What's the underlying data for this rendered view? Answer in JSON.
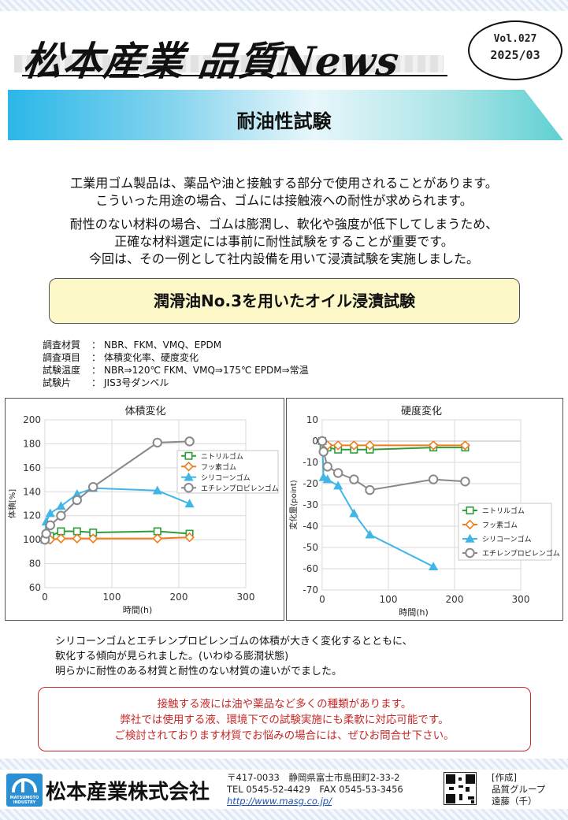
{
  "header": {
    "title": "松本産業 品質News",
    "vol": "Vol.027",
    "date": "2025/03"
  },
  "banner": {
    "title": "耐油性試験"
  },
  "intro": {
    "p1": [
      "工業用ゴム製品は、薬品や油と接触する部分で使用されることがあります。",
      "こういった用途の場合、ゴムには接触液への耐性が求められます。"
    ],
    "p2": [
      "耐性のない材料の場合、ゴムは膨潤し、軟化や強度が低下してしまうため、",
      "正確な材料選定には事前に耐性試験をすることが重要です。",
      "今回は、その一例として社内設備を用いて浸漬試験を実施しました。"
    ]
  },
  "test_title": "潤滑油No.3を用いたオイル浸漬試験",
  "conditions": [
    {
      "label": "調査材質",
      "sep": "：",
      "value": "NBR、FKM、VMQ、EPDM"
    },
    {
      "label": "調査項目",
      "sep": "：",
      "value": "体積変化率、硬度変化"
    },
    {
      "label": "試験温度",
      "sep": "：",
      "value": "NBR⇒120℃ FKM、VMQ⇒175℃ EPDM⇒常温"
    },
    {
      "label": "試験片",
      "sep": "：",
      "value": "JIS3号ダンベル"
    }
  ],
  "chart_data": [
    {
      "type": "line",
      "title": "体積変化",
      "xlabel": "時間(h)",
      "ylabel": "体積[%]",
      "xlim": [
        0,
        300
      ],
      "ylim": [
        60,
        200
      ],
      "xticks": [
        0,
        100,
        200,
        300
      ],
      "yticks": [
        60,
        80,
        100,
        120,
        140,
        160,
        180,
        200
      ],
      "grid": true,
      "legend_position": "right",
      "series": [
        {
          "name": "ニトリルゴム",
          "color": "#2e9e3c",
          "marker": "square",
          "x": [
            0,
            2,
            8,
            24,
            48,
            72,
            168,
            216
          ],
          "y": [
            100,
            101,
            103,
            107,
            107,
            106,
            107,
            105
          ]
        },
        {
          "name": "フッ素ゴム",
          "color": "#ef7d1c",
          "marker": "diamond",
          "x": [
            0,
            2,
            8,
            24,
            48,
            72,
            168,
            216
          ],
          "y": [
            100,
            100,
            100,
            101,
            101,
            101,
            101,
            102
          ]
        },
        {
          "name": "シリコーンゴム",
          "color": "#41b6e6",
          "marker": "triangle",
          "x": [
            0,
            2,
            8,
            24,
            48,
            72,
            168,
            216
          ],
          "y": [
            100,
            115,
            122,
            128,
            138,
            143,
            141,
            130
          ]
        },
        {
          "name": "エチレンプロピレンゴム",
          "color": "#888888",
          "marker": "circle",
          "x": [
            0,
            2,
            8,
            24,
            48,
            72,
            168,
            216
          ],
          "y": [
            100,
            105,
            112,
            120,
            133,
            144,
            181,
            182
          ]
        }
      ]
    },
    {
      "type": "line",
      "title": "硬度変化",
      "xlabel": "時間(h)",
      "ylabel": "変化量(point)",
      "xlim": [
        0,
        300
      ],
      "ylim": [
        -70,
        10
      ],
      "xticks": [
        0,
        100,
        200,
        300
      ],
      "yticks": [
        -70,
        -60,
        -50,
        -40,
        -30,
        -20,
        -10,
        0,
        10
      ],
      "grid": true,
      "legend_position": "right",
      "series": [
        {
          "name": "ニトリルゴム",
          "color": "#2e9e3c",
          "marker": "square",
          "x": [
            0,
            2,
            8,
            24,
            48,
            72,
            168,
            216
          ],
          "y": [
            0,
            -2,
            -3,
            -4,
            -4,
            -4,
            -3,
            -3
          ]
        },
        {
          "name": "フッ素ゴム",
          "color": "#ef7d1c",
          "marker": "diamond",
          "x": [
            0,
            2,
            8,
            24,
            48,
            72,
            168,
            216
          ],
          "y": [
            0,
            -1,
            -2,
            -2,
            -2,
            -2,
            -2,
            -2
          ]
        },
        {
          "name": "シリコーンゴム",
          "color": "#41b6e6",
          "marker": "triangle",
          "x": [
            0,
            2,
            8,
            24,
            48,
            72,
            168
          ],
          "y": [
            0,
            -17,
            -18,
            -21,
            -34,
            -44,
            -59
          ]
        },
        {
          "name": "エチレンプロピレンゴム",
          "color": "#888888",
          "marker": "circle",
          "x": [
            0,
            2,
            8,
            24,
            48,
            72,
            168,
            216
          ],
          "y": [
            0,
            -5,
            -12,
            -15,
            -18,
            -23,
            -18,
            -19
          ]
        }
      ]
    }
  ],
  "summary": [
    "シリコーンゴムとエチレンプロピレンゴムの体積が大きく変化するとともに、",
    "軟化する傾向が見られました。(いわゆる膨潤状態)",
    "明らかに耐性のある材質と耐性のない材質の違いがでました。"
  ],
  "notice": [
    "接触する液には油や薬品など多くの種類があります。",
    "弊社では使用する液、環境下での試験実施にも柔軟に対応可能です。",
    "ご検討されております材質でお悩みの場合には、ぜひお問合せ下さい。"
  ],
  "footer": {
    "logo_text": "MATSUMOTO INDUSTRY",
    "company": "松本産業株式会社",
    "address": "〒417-0033　静岡県富士市島田町2-33-2",
    "phone": "TEL 0545-52-4429　FAX 0545-53-3456",
    "url": "http://www.masg.co.jp/",
    "author_label": "[作成]",
    "author_group": "品質グループ",
    "author_name": "遠藤（千）"
  }
}
